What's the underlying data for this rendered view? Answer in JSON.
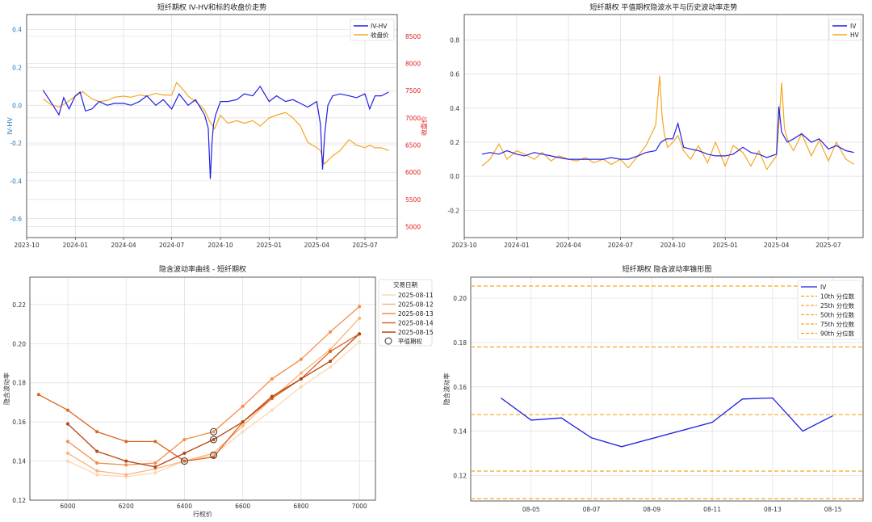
{
  "colors": {
    "iv": "#1f1fe6",
    "hv": "#f5a623",
    "close": "#f5a623",
    "left_axis": "#1f77b4",
    "right_axis": "#e31a1c",
    "grid": "#dddddd",
    "quantile": "#f5a623",
    "smile": [
      "#fcd7b4",
      "#fbb47a",
      "#f58c4a",
      "#dd6322",
      "#b5470f"
    ]
  },
  "chart_data": [
    {
      "type": "line",
      "title": "短纤期权 IV-HV和标的收盘价走势",
      "ylabel": "IV-HV",
      "y2label": "收盘价",
      "ylim": [
        -0.7,
        0.48
      ],
      "y2lim": [
        4800,
        8900
      ],
      "yticks": [
        "-0.6",
        "-0.4",
        "-0.2",
        "0.0",
        "0.2",
        "0.4"
      ],
      "y2ticks": [
        "5000",
        "5500",
        "6000",
        "6500",
        "7000",
        "7500",
        "8000",
        "8500"
      ],
      "xticks": [
        "2023-10",
        "2024-01",
        "2024-04",
        "2024-07",
        "2024-10",
        "2025-01",
        "2025-04",
        "2025-07"
      ],
      "xrange": [
        "2023-10-01",
        "2025-08-31"
      ],
      "legend": {
        "position": "top-right",
        "items": [
          "IV-HV",
          "收盘价"
        ]
      },
      "series": [
        {
          "name": "IV-HV",
          "axis": "left",
          "x": [
            "2023-11-01",
            "2023-11-15",
            "2023-12-01",
            "2023-12-10",
            "2023-12-20",
            "2024-01-01",
            "2024-01-10",
            "2024-01-20",
            "2024-02-01",
            "2024-02-15",
            "2024-03-01",
            "2024-03-15",
            "2024-04-01",
            "2024-04-15",
            "2024-05-01",
            "2024-05-15",
            "2024-06-01",
            "2024-06-15",
            "2024-07-01",
            "2024-07-15",
            "2024-08-01",
            "2024-08-15",
            "2024-09-01",
            "2024-09-08",
            "2024-09-12",
            "2024-09-15",
            "2024-09-18",
            "2024-09-22",
            "2024-10-01",
            "2024-10-15",
            "2024-11-01",
            "2024-11-15",
            "2024-12-01",
            "2024-12-15",
            "2025-01-01",
            "2025-01-15",
            "2025-02-01",
            "2025-02-15",
            "2025-03-01",
            "2025-03-15",
            "2025-04-01",
            "2025-04-08",
            "2025-04-12",
            "2025-04-16",
            "2025-04-22",
            "2025-05-01",
            "2025-05-15",
            "2025-06-01",
            "2025-06-15",
            "2025-07-01",
            "2025-07-10",
            "2025-07-20",
            "2025-08-01",
            "2025-08-15"
          ],
          "values": [
            0.08,
            0.02,
            -0.05,
            0.04,
            -0.02,
            0.05,
            0.07,
            -0.03,
            -0.02,
            0.02,
            0.0,
            0.01,
            0.01,
            0.0,
            0.02,
            0.05,
            0.0,
            0.03,
            -0.02,
            0.06,
            0.0,
            0.03,
            -0.05,
            -0.12,
            -0.39,
            -0.2,
            -0.1,
            -0.05,
            0.02,
            0.02,
            0.03,
            0.06,
            0.05,
            0.1,
            0.02,
            0.05,
            0.02,
            0.03,
            0.01,
            -0.01,
            0.02,
            -0.1,
            -0.34,
            -0.15,
            0.0,
            0.05,
            0.06,
            0.05,
            0.04,
            0.06,
            -0.02,
            0.05,
            0.05,
            0.07
          ]
        },
        {
          "name": "收盘价",
          "axis": "right",
          "x": [
            "2023-11-01",
            "2023-11-15",
            "2023-12-01",
            "2023-12-15",
            "2024-01-01",
            "2024-01-15",
            "2024-02-01",
            "2024-02-15",
            "2024-03-01",
            "2024-03-15",
            "2024-04-01",
            "2024-04-15",
            "2024-05-01",
            "2024-05-15",
            "2024-06-01",
            "2024-06-15",
            "2024-07-01",
            "2024-07-10",
            "2024-07-20",
            "2024-08-01",
            "2024-08-15",
            "2024-09-01",
            "2024-09-10",
            "2024-09-20",
            "2024-10-01",
            "2024-10-15",
            "2024-11-01",
            "2024-11-15",
            "2024-12-01",
            "2024-12-15",
            "2025-01-01",
            "2025-01-15",
            "2025-02-01",
            "2025-02-15",
            "2025-03-01",
            "2025-03-15",
            "2025-04-01",
            "2025-04-08",
            "2025-04-15",
            "2025-05-01",
            "2025-05-15",
            "2025-06-01",
            "2025-06-15",
            "2025-07-01",
            "2025-07-10",
            "2025-07-20",
            "2025-08-01",
            "2025-08-15"
          ],
          "values": [
            7350,
            7250,
            7200,
            7280,
            7400,
            7480,
            7350,
            7300,
            7320,
            7380,
            7400,
            7380,
            7420,
            7400,
            7450,
            7420,
            7420,
            7650,
            7550,
            7400,
            7300,
            7150,
            6950,
            6800,
            7050,
            6900,
            6950,
            6900,
            6950,
            6850,
            7000,
            7050,
            7100,
            7000,
            6850,
            6550,
            6450,
            6400,
            6150,
            6300,
            6400,
            6600,
            6500,
            6450,
            6500,
            6450,
            6450,
            6400
          ]
        }
      ]
    },
    {
      "type": "line",
      "title": "短纤期权 平值期权隐波水平与历史波动率走势",
      "ylim": [
        -0.36,
        0.95
      ],
      "yticks": [
        "-0.2",
        "0.0",
        "0.2",
        "0.4",
        "0.6",
        "0.8"
      ],
      "xticks": [
        "2023-10",
        "2024-01",
        "2024-04",
        "2024-07",
        "2024-10",
        "2025-01",
        "2025-04",
        "2025-07"
      ],
      "xrange": [
        "2023-10-01",
        "2025-08-31"
      ],
      "legend": {
        "position": "top-right",
        "items": [
          "IV",
          "HV"
        ]
      },
      "series": [
        {
          "name": "IV",
          "x": [
            "2023-11-01",
            "2023-11-15",
            "2023-12-01",
            "2023-12-15",
            "2024-01-01",
            "2024-01-15",
            "2024-02-01",
            "2024-02-15",
            "2024-03-01",
            "2024-03-15",
            "2024-04-01",
            "2024-04-15",
            "2024-05-01",
            "2024-05-15",
            "2024-06-01",
            "2024-06-15",
            "2024-07-01",
            "2024-07-15",
            "2024-08-01",
            "2024-08-15",
            "2024-09-01",
            "2024-09-10",
            "2024-09-20",
            "2024-10-01",
            "2024-10-10",
            "2024-10-20",
            "2024-11-01",
            "2024-11-15",
            "2024-12-01",
            "2024-12-15",
            "2025-01-01",
            "2025-01-15",
            "2025-02-01",
            "2025-02-15",
            "2025-03-01",
            "2025-03-15",
            "2025-04-01",
            "2025-04-05",
            "2025-04-10",
            "2025-04-20",
            "2025-05-01",
            "2025-05-15",
            "2025-06-01",
            "2025-06-15",
            "2025-07-01",
            "2025-07-15",
            "2025-08-01",
            "2025-08-15"
          ],
          "values": [
            0.13,
            0.14,
            0.13,
            0.15,
            0.13,
            0.12,
            0.14,
            0.13,
            0.12,
            0.11,
            0.1,
            0.1,
            0.1,
            0.1,
            0.1,
            0.11,
            0.1,
            0.1,
            0.12,
            0.14,
            0.15,
            0.2,
            0.22,
            0.22,
            0.31,
            0.17,
            0.16,
            0.15,
            0.13,
            0.12,
            0.12,
            0.13,
            0.17,
            0.14,
            0.13,
            0.11,
            0.13,
            0.41,
            0.26,
            0.2,
            0.22,
            0.25,
            0.2,
            0.22,
            0.16,
            0.18,
            0.15,
            0.14
          ]
        },
        {
          "name": "HV",
          "x": [
            "2023-11-01",
            "2023-11-15",
            "2023-12-01",
            "2023-12-15",
            "2024-01-01",
            "2024-01-15",
            "2024-02-01",
            "2024-02-15",
            "2024-03-01",
            "2024-03-15",
            "2024-04-01",
            "2024-04-15",
            "2024-05-01",
            "2024-05-15",
            "2024-06-01",
            "2024-06-15",
            "2024-07-01",
            "2024-07-15",
            "2024-08-01",
            "2024-08-15",
            "2024-09-01",
            "2024-09-08",
            "2024-09-12",
            "2024-09-16",
            "2024-09-22",
            "2024-10-01",
            "2024-10-10",
            "2024-10-20",
            "2024-11-01",
            "2024-11-15",
            "2024-12-01",
            "2024-12-15",
            "2025-01-01",
            "2025-01-15",
            "2025-02-01",
            "2025-02-15",
            "2025-03-01",
            "2025-03-15",
            "2025-04-01",
            "2025-04-05",
            "2025-04-10",
            "2025-04-15",
            "2025-04-22",
            "2025-05-01",
            "2025-05-15",
            "2025-06-01",
            "2025-06-15",
            "2025-07-01",
            "2025-07-15",
            "2025-08-01",
            "2025-08-15"
          ],
          "values": [
            0.06,
            0.1,
            0.19,
            0.1,
            0.15,
            0.13,
            0.1,
            0.14,
            0.09,
            0.12,
            0.1,
            0.09,
            0.11,
            0.08,
            0.1,
            0.07,
            0.1,
            0.05,
            0.12,
            0.18,
            0.3,
            0.59,
            0.36,
            0.25,
            0.17,
            0.2,
            0.24,
            0.15,
            0.1,
            0.18,
            0.08,
            0.2,
            0.06,
            0.18,
            0.14,
            0.06,
            0.15,
            0.04,
            0.12,
            0.3,
            0.55,
            0.28,
            0.2,
            0.15,
            0.25,
            0.12,
            0.21,
            0.09,
            0.2,
            0.1,
            0.07
          ]
        }
      ]
    },
    {
      "type": "line",
      "title": "隐含波动率曲线 - 短纤期权",
      "xlabel": "行权价",
      "ylabel": "隐含波动率",
      "xlim": [
        5870,
        7055
      ],
      "ylim": [
        0.12,
        0.234
      ],
      "xticks": [
        "6000",
        "6200",
        "6400",
        "6600",
        "6800",
        "7000"
      ],
      "yticks": [
        "0.12",
        "0.14",
        "0.16",
        "0.18",
        "0.20",
        "0.22"
      ],
      "legend": {
        "position": "top-right",
        "title": "交易日期",
        "items": [
          "2025-08-11",
          "2025-08-12",
          "2025-08-13",
          "2025-08-14",
          "2025-08-15",
          "平值期权"
        ]
      },
      "series": [
        {
          "name": "2025-08-11",
          "x": [
            6000,
            6100,
            6200,
            6300,
            6400,
            6500,
            6600,
            6700,
            6800,
            6900,
            7000
          ],
          "values": [
            0.14,
            0.133,
            0.132,
            0.134,
            0.14,
            0.143,
            0.155,
            0.166,
            0.178,
            0.188,
            0.201
          ]
        },
        {
          "name": "2025-08-12",
          "x": [
            6000,
            6100,
            6200,
            6300,
            6400,
            6500,
            6600,
            6700,
            6800,
            6900,
            7000
          ],
          "values": [
            0.144,
            0.135,
            0.133,
            0.136,
            0.14,
            0.144,
            0.158,
            0.172,
            0.185,
            0.197,
            0.213
          ]
        },
        {
          "name": "2025-08-13",
          "x": [
            6000,
            6100,
            6200,
            6300,
            6400,
            6500,
            6600,
            6700,
            6800,
            6900,
            7000
          ],
          "values": [
            0.15,
            0.139,
            0.138,
            0.139,
            0.151,
            0.155,
            0.168,
            0.182,
            0.192,
            0.206,
            0.219
          ]
        },
        {
          "name": "2025-08-14",
          "x": [
            5900,
            6000,
            6100,
            6200,
            6300,
            6400,
            6500,
            6600,
            6700,
            6800,
            6900,
            7000
          ],
          "values": [
            0.174,
            0.166,
            0.155,
            0.15,
            0.15,
            0.14,
            0.142,
            0.16,
            0.172,
            0.182,
            0.196,
            0.205
          ]
        },
        {
          "name": "2025-08-15",
          "x": [
            6000,
            6100,
            6200,
            6300,
            6400,
            6500,
            6600,
            6700,
            6800,
            6900,
            7000
          ],
          "values": [
            0.159,
            0.145,
            0.14,
            0.137,
            0.144,
            0.151,
            0.16,
            0.173,
            0.182,
            0.191,
            0.205
          ]
        }
      ],
      "atm": {
        "name": "平值期权",
        "points": [
          [
            6400,
            0.14
          ],
          [
            6500,
            0.143
          ],
          [
            6500,
            0.151
          ],
          [
            6500,
            0.155
          ]
        ]
      }
    },
    {
      "type": "line",
      "title": "短纤期权 隐含波动率锥形图",
      "ylabel": "隐含波动率",
      "xlim": [
        "2025-08-03",
        "2025-08-16"
      ],
      "ylim": [
        0.1085,
        0.2095
      ],
      "xticks": [
        "08-05",
        "08-07",
        "08-09",
        "08-11",
        "08-13",
        "08-15"
      ],
      "yticks": [
        "0.12",
        "0.14",
        "0.16",
        "0.18",
        "0.20"
      ],
      "legend": {
        "position": "top-right",
        "items": [
          "IV",
          "10th 分位数",
          "25th 分位数",
          "50th 分位数",
          "75th 分位数",
          "90th 分位数"
        ]
      },
      "series": [
        {
          "name": "IV",
          "x": [
            "2025-08-04",
            "2025-08-05",
            "2025-08-06",
            "2025-08-07",
            "2025-08-08",
            "2025-08-11",
            "2025-08-12",
            "2025-08-13",
            "2025-08-14",
            "2025-08-15"
          ],
          "values": [
            0.155,
            0.145,
            0.146,
            0.137,
            0.133,
            0.144,
            0.1545,
            0.155,
            0.14,
            0.147
          ]
        }
      ],
      "quantiles": [
        {
          "name": "10th 分位数",
          "value": 0.1095
        },
        {
          "name": "25th 分位数",
          "value": 0.122
        },
        {
          "name": "50th 分位数",
          "value": 0.1475
        },
        {
          "name": "75th 分位数",
          "value": 0.178
        },
        {
          "name": "90th 分位数",
          "value": 0.2055
        }
      ]
    }
  ]
}
